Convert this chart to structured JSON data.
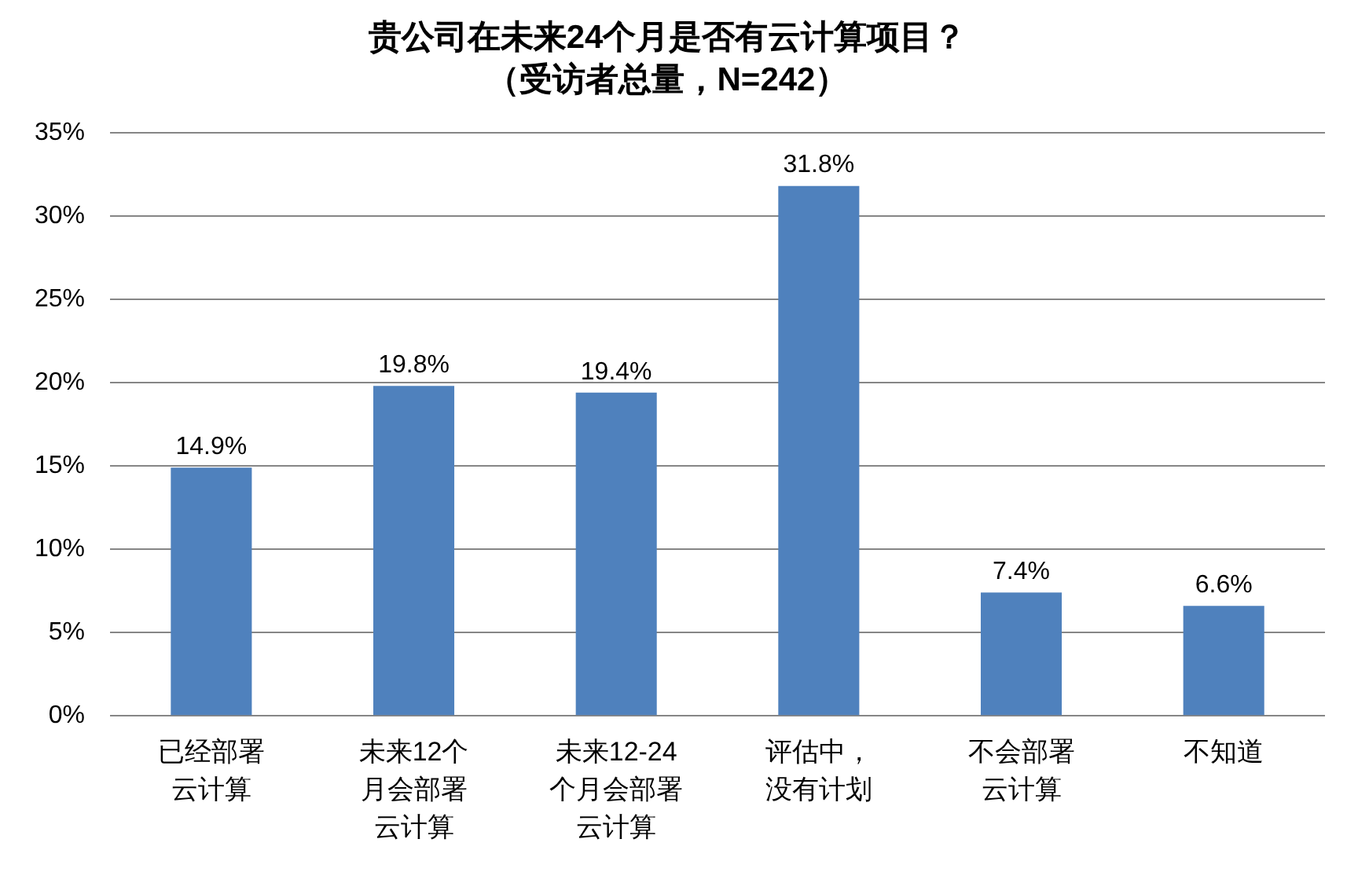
{
  "chart_data": {
    "type": "bar",
    "title": "贵公司在未来24个月是否有云计算项目？",
    "subtitle": "（受访者总量，N=242）",
    "categories": [
      "已经部署云计算",
      "未来12个月会部署云计算",
      "未来12-24个月会部署云计算",
      "评估中，没有计划",
      "不会部署云计算",
      "不知道"
    ],
    "values": [
      14.9,
      19.8,
      19.4,
      31.8,
      7.4,
      6.6
    ],
    "value_labels": [
      "14.9%",
      "19.8%",
      "19.4%",
      "31.8%",
      "7.4%",
      "6.6%"
    ],
    "color": "#4f81bd",
    "ylim": [
      0,
      35
    ],
    "yticks": [
      {
        "value": 0,
        "label": "0%"
      },
      {
        "value": 5,
        "label": "5%"
      },
      {
        "value": 10,
        "label": "10%"
      },
      {
        "value": 15,
        "label": "15%"
      },
      {
        "value": 20,
        "label": "20%"
      },
      {
        "value": 25,
        "label": "25%"
      },
      {
        "value": 30,
        "label": "30%"
      },
      {
        "value": 35,
        "label": "35%"
      }
    ],
    "grid": "y",
    "legend": false
  }
}
